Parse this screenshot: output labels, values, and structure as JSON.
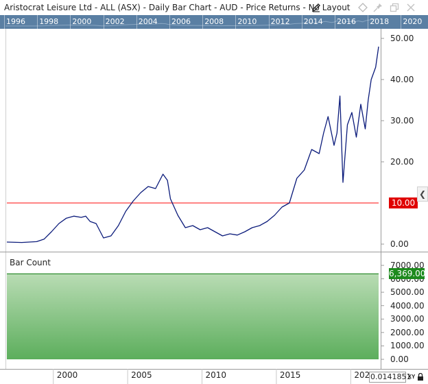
{
  "window": {
    "title": "Aristocrat Leisure Ltd - ALL (ASX) - Daily Bar Chart - AUD - Price Returns - No Layout",
    "icons": [
      "pencil-icon",
      "diamond-icon",
      "pin-icon",
      "restore-icon",
      "close-icon"
    ]
  },
  "overview": {
    "years": [
      "1996",
      "1998",
      "2000",
      "2002",
      "2004",
      "2006",
      "2008",
      "2010",
      "2012",
      "2014",
      "2016",
      "2018",
      "2020"
    ]
  },
  "price_panel": {
    "y_ticks": [
      "50.00",
      "40.00",
      "30.00",
      "20.00",
      "0.00"
    ],
    "horizontal_line_label": "10.00",
    "horizontal_line_value": 10.0,
    "horizontal_line_color": "#ff3b3b",
    "series_color": "#0a1a7a"
  },
  "bar_count_panel": {
    "label": "Bar Count",
    "y_ticks": [
      "7000.00",
      "6000.00",
      "5000.00",
      "4000.00",
      "3000.00",
      "2000.00",
      "1000.00",
      "0.00"
    ],
    "current_value_label": "6,369.00",
    "fill_color": "#66b266"
  },
  "x_axis": {
    "labels": [
      "2000",
      "2005",
      "2010",
      "2015",
      "202"
    ]
  },
  "status": {
    "cursor_value": "0.0141851",
    "xy_label": "XY",
    "collapse_icon": "chevron-left-icon",
    "lock_icon": "lock-icon"
  },
  "chart_data": [
    {
      "type": "line",
      "title": "Aristocrat Leisure Ltd - ALL (ASX) - Daily Bar Chart - AUD - Price Returns - No Layout",
      "x": [
        1996.0,
        1997.0,
        1998.0,
        1998.5,
        1999.0,
        1999.5,
        2000.0,
        2000.5,
        2001.0,
        2001.3,
        2001.6,
        2002.0,
        2002.5,
        2003.0,
        2003.5,
        2004.0,
        2004.5,
        2005.0,
        2005.5,
        2006.0,
        2006.5,
        2006.8,
        2007.0,
        2007.5,
        2008.0,
        2008.5,
        2009.0,
        2009.5,
        2010.0,
        2010.5,
        2011.0,
        2011.5,
        2012.0,
        2012.5,
        2013.0,
        2013.5,
        2014.0,
        2014.5,
        2015.0,
        2015.5,
        2016.0,
        2016.5,
        2017.0,
        2017.3,
        2017.6,
        2018.0,
        2018.2,
        2018.4,
        2018.6,
        2018.9,
        2019.2,
        2019.5,
        2019.8,
        2020.1,
        2020.3,
        2020.5,
        2020.8,
        2021.0
      ],
      "y": [
        0.5,
        0.4,
        0.6,
        1.2,
        3.0,
        5.0,
        6.3,
        6.8,
        6.5,
        6.8,
        5.5,
        5.0,
        1.5,
        2.0,
        4.5,
        8.0,
        10.5,
        12.5,
        14.0,
        13.5,
        17.0,
        15.5,
        11.0,
        7.0,
        4.0,
        4.5,
        3.5,
        4.0,
        3.0,
        2.0,
        2.5,
        2.2,
        3.0,
        4.0,
        4.5,
        5.5,
        7.0,
        9.0,
        10.0,
        16.0,
        18.0,
        23.0,
        22.0,
        27.0,
        31.0,
        24.0,
        27.0,
        36.0,
        15.0,
        29.0,
        32.0,
        26.0,
        34.0,
        28.0,
        35.0,
        40.0,
        43.0,
        48.0
      ],
      "ylim": [
        -2,
        52
      ],
      "xlabel": "",
      "ylabel": "",
      "reference_line": 10.0,
      "grid": false
    },
    {
      "type": "area",
      "title": "Bar Count",
      "x": [
        1996.0,
        2021.0
      ],
      "y": [
        6369,
        6369
      ],
      "ylim": [
        -400,
        7400
      ],
      "grid": false
    }
  ]
}
